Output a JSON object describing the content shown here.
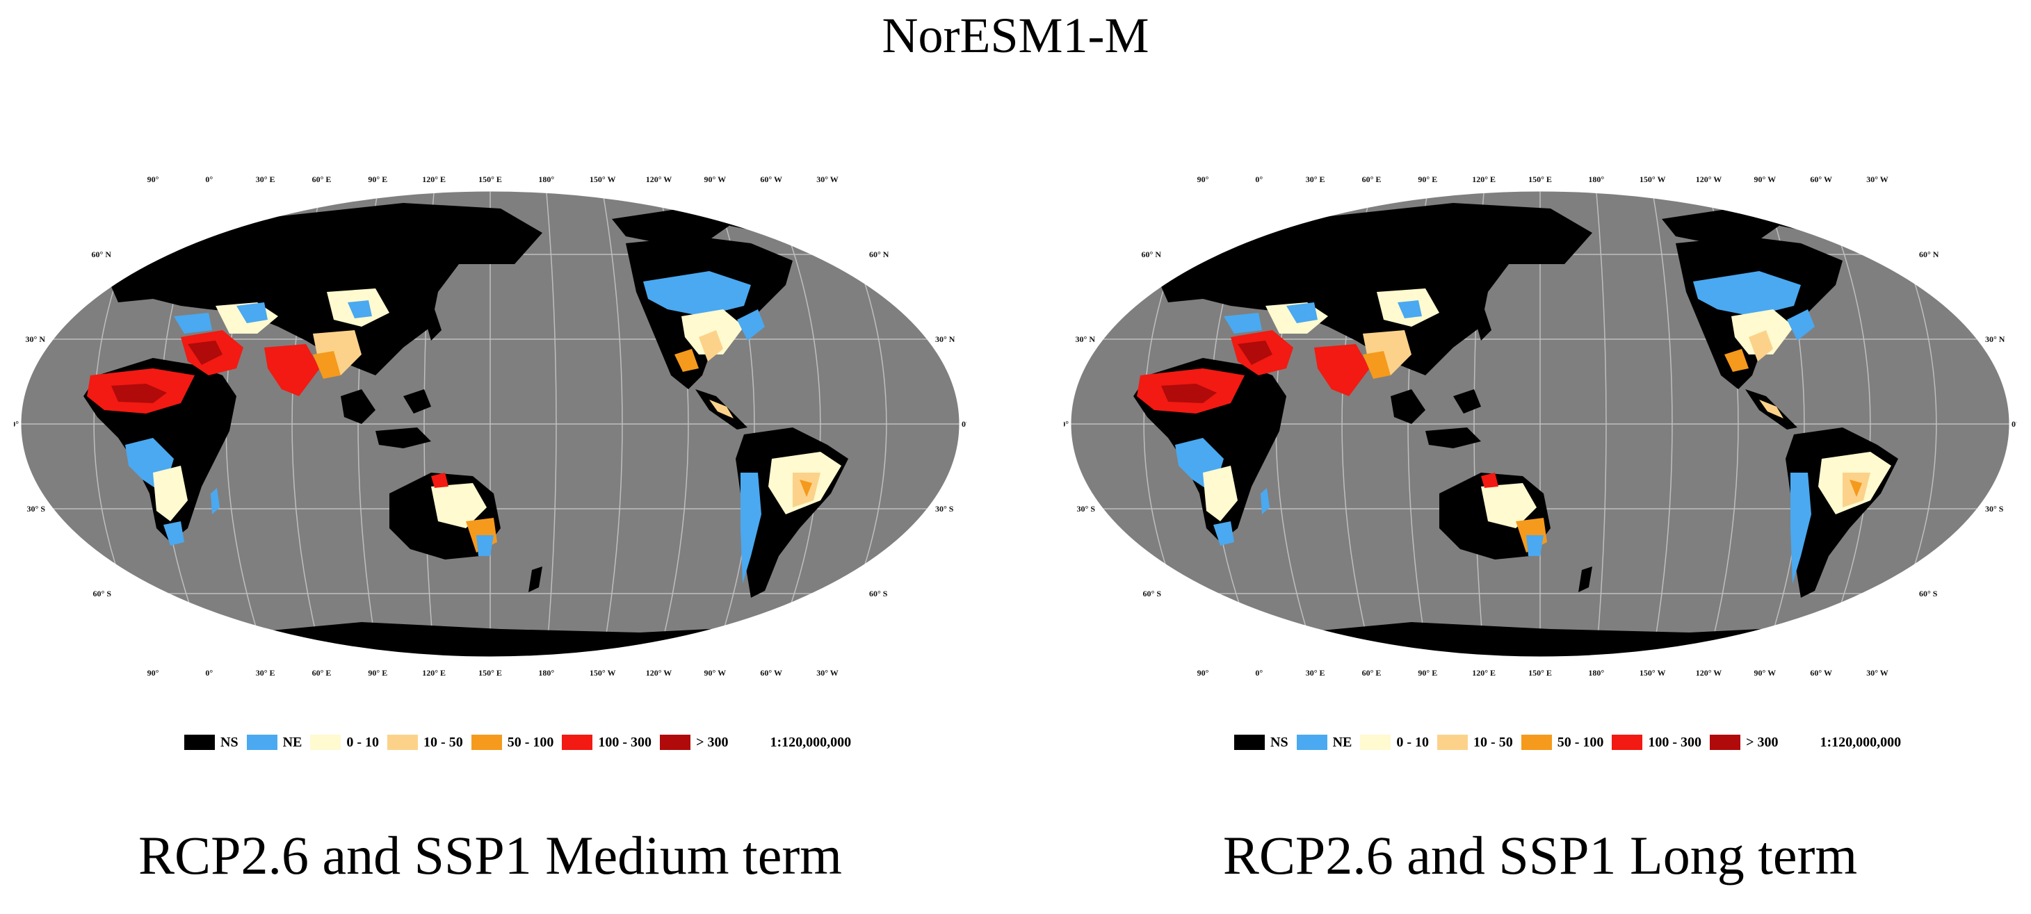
{
  "title": "NorESM1-M",
  "top_lon_labels": [
    "90°",
    "0°",
    "30° E",
    "60° E",
    "90° E",
    "120° E",
    "150° E",
    "180°",
    "150° W",
    "120° W",
    "90° W",
    "60° W",
    "30° W"
  ],
  "bottom_lon_labels": [
    "90°",
    "0°",
    "30° E",
    "60° E",
    "90° E",
    "120° E",
    "150° E",
    "180°",
    "150° W",
    "120° W",
    "90° W",
    "60° W",
    "30° W"
  ],
  "left_lat_labels": [
    "60° N",
    "30° N",
    "0°",
    "30° S",
    "60° S"
  ],
  "right_lat_labels": [
    "60° N",
    "30° N",
    "0°",
    "30° S",
    "60° S"
  ],
  "legend": {
    "items": [
      {
        "label": "NS",
        "color": "#000000"
      },
      {
        "label": "NE",
        "color": "#4aa9f0"
      },
      {
        "label": "0 - 10",
        "color": "#fffad0"
      },
      {
        "label": "10 - 50",
        "color": "#fcd28a"
      },
      {
        "label": "50 - 100",
        "color": "#f59a1c"
      },
      {
        "label": "100 - 300",
        "color": "#f21a12"
      },
      {
        "label": "> 300",
        "color": "#b00a0a"
      }
    ],
    "scale": "1:120,000,000"
  },
  "colors": {
    "ocean": "#7f7f7f",
    "graticule": "#bfbfbf",
    "land_ns": "#000000"
  },
  "panels": [
    {
      "caption": "RCP2.6 and SSP1 Medium term"
    },
    {
      "caption": "RCP2.6 and SSP1 Long term"
    }
  ]
}
